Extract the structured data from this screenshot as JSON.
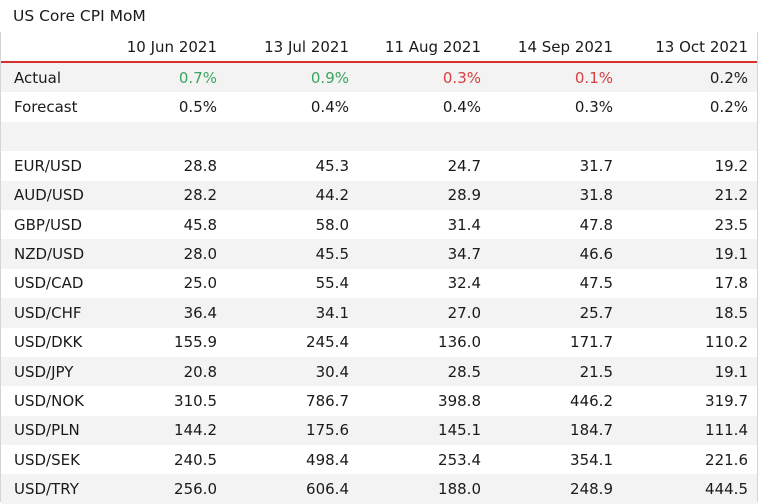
{
  "chart_data": {
    "type": "table",
    "title": "US Core CPI MoM",
    "columns": [
      "10 Jun 2021",
      "13 Jul 2021",
      "11 Aug 2021",
      "14 Sep 2021",
      "13 Oct 2021"
    ],
    "actual": {
      "label": "Actual",
      "values": [
        "0.7%",
        "0.9%",
        "0.3%",
        "0.1%",
        "0.2%"
      ],
      "colors": [
        "#3aa55f",
        "#3aa55f",
        "#d64040",
        "#d64040",
        "#1a1a1a"
      ]
    },
    "forecast": {
      "label": "Forecast",
      "values": [
        "0.5%",
        "0.4%",
        "0.4%",
        "0.3%",
        "0.2%"
      ]
    },
    "rows": [
      {
        "label": "EUR/USD",
        "values": [
          "28.8",
          "45.3",
          "24.7",
          "31.7",
          "19.2"
        ]
      },
      {
        "label": "AUD/USD",
        "values": [
          "28.2",
          "44.2",
          "28.9",
          "31.8",
          "21.2"
        ]
      },
      {
        "label": "GBP/USD",
        "values": [
          "45.8",
          "58.0",
          "31.4",
          "47.8",
          "23.5"
        ]
      },
      {
        "label": "NZD/USD",
        "values": [
          "28.0",
          "45.5",
          "34.7",
          "46.6",
          "19.1"
        ]
      },
      {
        "label": "USD/CAD",
        "values": [
          "25.0",
          "55.4",
          "32.4",
          "47.5",
          "17.8"
        ]
      },
      {
        "label": "USD/CHF",
        "values": [
          "36.4",
          "34.1",
          "27.0",
          "25.7",
          "18.5"
        ]
      },
      {
        "label": "USD/DKK",
        "values": [
          "155.9",
          "245.4",
          "136.0",
          "171.7",
          "110.2"
        ]
      },
      {
        "label": "USD/JPY",
        "values": [
          "20.8",
          "30.4",
          "28.5",
          "21.5",
          "19.1"
        ]
      },
      {
        "label": "USD/NOK",
        "values": [
          "310.5",
          "786.7",
          "398.8",
          "446.2",
          "319.7"
        ]
      },
      {
        "label": "USD/PLN",
        "values": [
          "144.2",
          "175.6",
          "145.1",
          "184.7",
          "111.4"
        ]
      },
      {
        "label": "USD/SEK",
        "values": [
          "240.5",
          "498.4",
          "253.4",
          "354.1",
          "221.6"
        ]
      },
      {
        "label": "USD/TRY",
        "values": [
          "256.0",
          "606.4",
          "188.0",
          "248.9",
          "444.5"
        ]
      }
    ],
    "colors": {
      "header_rule": "#d9302e",
      "positive": "#3aa55f",
      "negative": "#d64040",
      "stripe": "#f3f3f3"
    }
  }
}
